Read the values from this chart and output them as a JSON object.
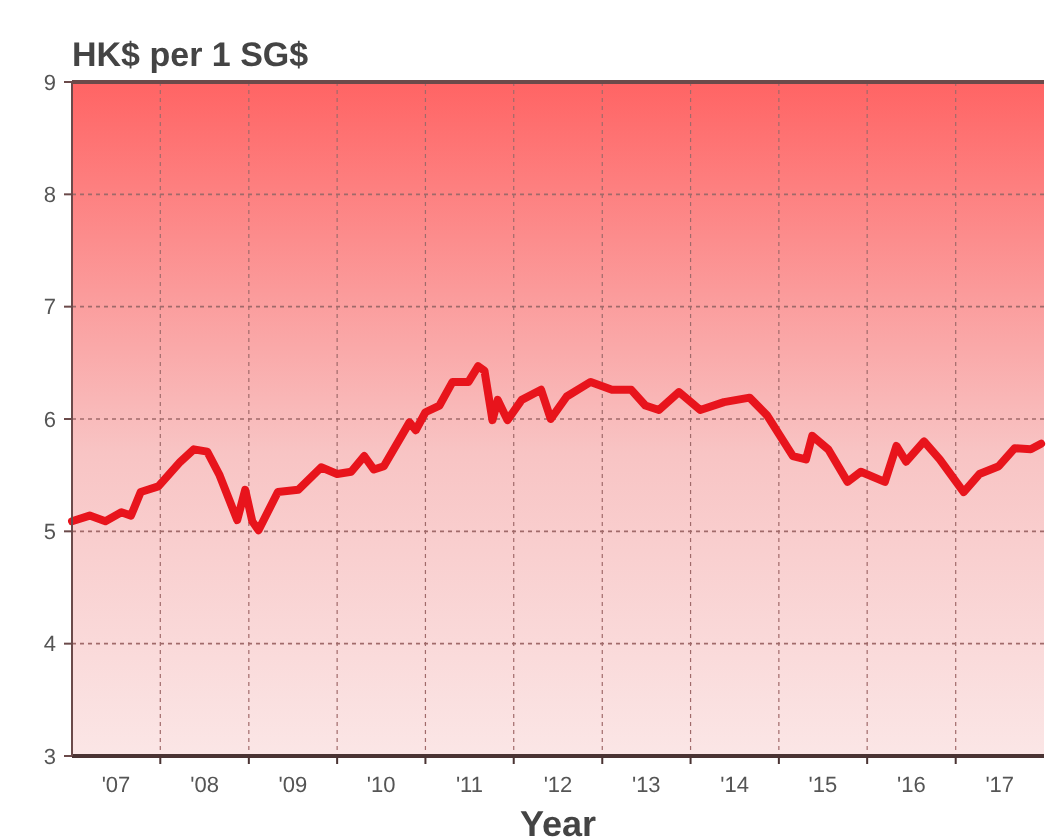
{
  "chart_data": {
    "type": "line",
    "title": "HK$ per 1 SG$",
    "xlabel": "Year",
    "x": [
      "2007-01-01",
      "2007-03-15",
      "2007-05-19",
      "2007-07-24",
      "2007-09-02",
      "2007-10-12",
      "2007-12-24",
      "2008-03-24",
      "2008-05-19",
      "2008-07-13",
      "2008-09-02",
      "2008-11-14",
      "2008-12-17",
      "2009-01-15",
      "2009-02-10",
      "2009-05-01",
      "2009-07-24",
      "2009-10-27",
      "2010-01-01",
      "2010-02-28",
      "2010-04-23",
      "2010-06-02",
      "2010-07-13",
      "2010-10-27",
      "2010-11-22",
      "2011-01-01",
      "2011-02-28",
      "2011-04-23",
      "2011-06-28",
      "2011-08-07",
      "2011-09-02",
      "2011-10-05",
      "2011-10-27",
      "2011-12-06",
      "2012-02-03",
      "2012-04-23",
      "2012-06-02",
      "2012-08-07",
      "2012-11-14",
      "2013-02-10",
      "2013-05-01",
      "2013-06-28",
      "2013-08-23",
      "2013-11-14",
      "2014-02-10",
      "2014-05-19",
      "2014-09-02",
      "2014-11-14",
      "2015-02-28",
      "2015-04-23",
      "2015-05-19",
      "2015-07-24",
      "2015-10-12",
      "2015-12-06",
      "2016-03-14",
      "2016-05-01",
      "2016-06-10",
      "2016-08-23",
      "2016-10-27",
      "2017-02-03",
      "2017-04-09",
      "2017-06-28",
      "2017-09-02",
      "2017-11-07",
      "2017-12-20"
    ],
    "series": [
      {
        "color": "#e8141c",
        "values": [
          5.09,
          5.14,
          5.09,
          5.17,
          5.14,
          5.35,
          5.4,
          5.62,
          5.73,
          5.71,
          5.5,
          5.1,
          5.37,
          5.09,
          5.01,
          5.35,
          5.37,
          5.57,
          5.51,
          5.53,
          5.67,
          5.55,
          5.58,
          5.97,
          5.9,
          6.06,
          6.12,
          6.33,
          6.33,
          6.47,
          6.43,
          5.99,
          6.17,
          5.99,
          6.17,
          6.26,
          6.0,
          6.2,
          6.33,
          6.26,
          6.26,
          6.12,
          6.08,
          6.24,
          6.08,
          6.15,
          6.19,
          6.03,
          5.67,
          5.64,
          5.85,
          5.73,
          5.44,
          5.53,
          5.44,
          5.76,
          5.62,
          5.8,
          5.64,
          5.35,
          5.51,
          5.58,
          5.74,
          5.73,
          5.78
        ]
      }
    ],
    "xlim": [
      "2007-01-01",
      "2018-01-01"
    ],
    "xticks": [
      {
        "value": "2007-07-02",
        "label": "'07"
      },
      {
        "value": "2008-01-01",
        "label": null
      },
      {
        "value": "2008-07-02",
        "label": "'08"
      },
      {
        "value": "2009-01-01",
        "label": null
      },
      {
        "value": "2009-07-02",
        "label": "'09"
      },
      {
        "value": "2010-01-01",
        "label": null
      },
      {
        "value": "2010-07-02",
        "label": "'10"
      },
      {
        "value": "2011-01-01",
        "label": null
      },
      {
        "value": "2011-07-02",
        "label": "'11"
      },
      {
        "value": "2012-01-01",
        "label": null
      },
      {
        "value": "2012-07-02",
        "label": "'12"
      },
      {
        "value": "2013-01-01",
        "label": null
      },
      {
        "value": "2013-07-02",
        "label": "'13"
      },
      {
        "value": "2014-01-01",
        "label": null
      },
      {
        "value": "2014-07-02",
        "label": "'14"
      },
      {
        "value": "2015-01-01",
        "label": null
      },
      {
        "value": "2015-07-02",
        "label": "'15"
      },
      {
        "value": "2016-01-01",
        "label": null
      },
      {
        "value": "2016-07-02",
        "label": "'16"
      },
      {
        "value": "2017-01-01",
        "label": null
      },
      {
        "value": "2017-07-02",
        "label": "'17"
      }
    ],
    "ylim": [
      3,
      9
    ],
    "yticks": [
      3,
      4,
      5,
      6,
      7,
      8,
      9
    ],
    "grid": true,
    "marker": "none",
    "line_style": "solid"
  }
}
